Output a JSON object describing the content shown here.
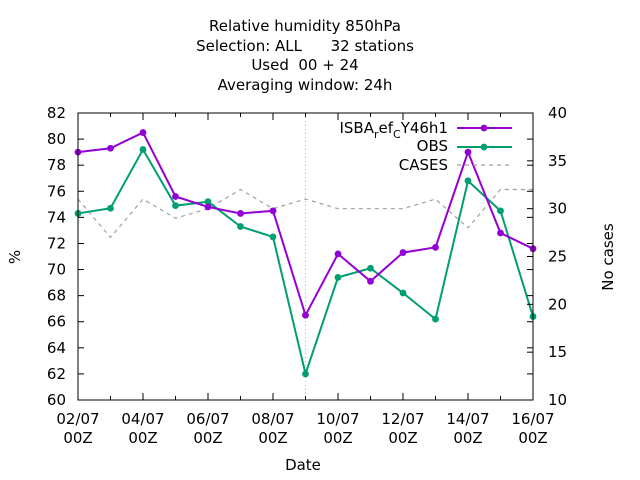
{
  "chart_data": {
    "type": "line",
    "title_lines": [
      "Relative humidity 850hPa",
      "Selection: ALL      32 stations",
      "Used  00 + 24",
      "Averaging window: 24h"
    ],
    "xlabel": "Date",
    "ylabel": "%",
    "y2label": "No cases",
    "x_tick_labels": [
      {
        "date": "2023-07-02",
        "line1": "02/07",
        "line2": "00Z"
      },
      {
        "date": "2023-07-04",
        "line1": "04/07",
        "line2": "00Z"
      },
      {
        "date": "2023-07-06",
        "line1": "06/07",
        "line2": "00Z"
      },
      {
        "date": "2023-07-08",
        "line1": "08/07",
        "line2": "00Z"
      },
      {
        "date": "2023-07-10",
        "line1": "10/07",
        "line2": "00Z"
      },
      {
        "date": "2023-07-12",
        "line1": "12/07",
        "line2": "00Z"
      },
      {
        "date": "2023-07-14",
        "line1": "14/07",
        "line2": "00Z"
      },
      {
        "date": "2023-07-16",
        "line1": "16/07",
        "line2": "00Z"
      }
    ],
    "x": [
      "2023-07-02",
      "2023-07-03",
      "2023-07-04",
      "2023-07-05",
      "2023-07-06",
      "2023-07-07",
      "2023-07-08",
      "2023-07-09",
      "2023-07-10",
      "2023-07-11",
      "2023-07-12",
      "2023-07-13",
      "2023-07-14",
      "2023-07-15",
      "2023-07-16"
    ],
    "xlim": [
      "2023-07-02",
      "2023-07-16"
    ],
    "ylim": [
      60,
      82
    ],
    "y_ticks": [
      60,
      62,
      64,
      66,
      68,
      70,
      72,
      74,
      76,
      78,
      80,
      82
    ],
    "y2lim": [
      10,
      40
    ],
    "y2_ticks": [
      10,
      15,
      20,
      25,
      30,
      35,
      40
    ],
    "grid": "x at 09/07 only",
    "legend_position": "top-right",
    "series": [
      {
        "name": "ISBA_ref_CY46h1",
        "legend_label": {
          "p1": "ISBA",
          "p2": "r",
          "p3": "ef",
          "p4": "C",
          "p5": "Y46h1"
        },
        "color": "#9400d3",
        "axis": "left",
        "marker": "dot",
        "values": [
          79.0,
          79.3,
          80.5,
          75.6,
          74.8,
          74.3,
          74.5,
          66.5,
          71.2,
          69.1,
          71.3,
          71.7,
          79.0,
          72.8,
          71.6
        ]
      },
      {
        "name": "OBS",
        "color": "#009e73",
        "axis": "left",
        "marker": "dot",
        "values": [
          74.3,
          74.7,
          79.2,
          74.9,
          75.2,
          73.3,
          72.5,
          62.0,
          69.4,
          70.1,
          68.2,
          66.2,
          76.8,
          74.5,
          66.4
        ]
      },
      {
        "name": "CASES",
        "color": "#a0a0a0",
        "axis": "right",
        "dashed": true,
        "values": [
          31,
          27,
          31,
          29,
          30,
          32,
          30,
          31,
          30,
          30,
          30,
          31,
          28,
          32,
          32
        ]
      }
    ]
  }
}
